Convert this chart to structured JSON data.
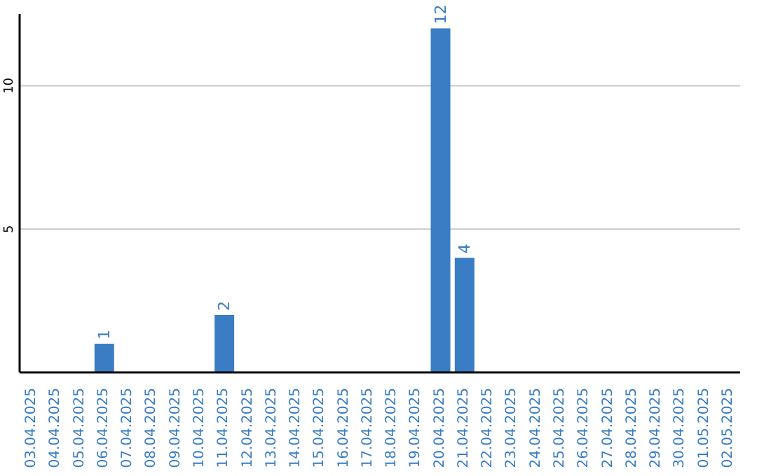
{
  "chart_data": {
    "type": "bar",
    "categories": [
      "03.04.2025",
      "04.04.2025",
      "05.04.2025",
      "06.04.2025",
      "07.04.2025",
      "08.04.2025",
      "09.04.2025",
      "10.04.2025",
      "11.04.2025",
      "12.04.2025",
      "13.04.2025",
      "14.04.2025",
      "15.04.2025",
      "16.04.2025",
      "17.04.2025",
      "18.04.2025",
      "19.04.2025",
      "20.04.2025",
      "21.04.2025",
      "22.04.2025",
      "23.04.2025",
      "24.04.2025",
      "25.04.2025",
      "26.04.2025",
      "27.04.2025",
      "28.04.2025",
      "29.04.2025",
      "30.04.2025",
      "01.05.2025",
      "02.05.2025"
    ],
    "values": [
      0,
      0,
      0,
      1,
      0,
      0,
      0,
      0,
      2,
      0,
      0,
      0,
      0,
      0,
      0,
      0,
      0,
      12,
      4,
      0,
      0,
      0,
      0,
      0,
      0,
      0,
      0,
      0,
      0,
      0
    ],
    "value_labels": [
      null,
      null,
      null,
      "1",
      null,
      null,
      null,
      null,
      "2",
      null,
      null,
      null,
      null,
      null,
      null,
      null,
      null,
      "12",
      "4",
      null,
      null,
      null,
      null,
      null,
      null,
      null,
      null,
      null,
      null,
      null
    ],
    "color": "#3a7dc4",
    "ylim": [
      0,
      12.5
    ],
    "yticks": [
      5,
      10
    ],
    "grid": "y"
  }
}
